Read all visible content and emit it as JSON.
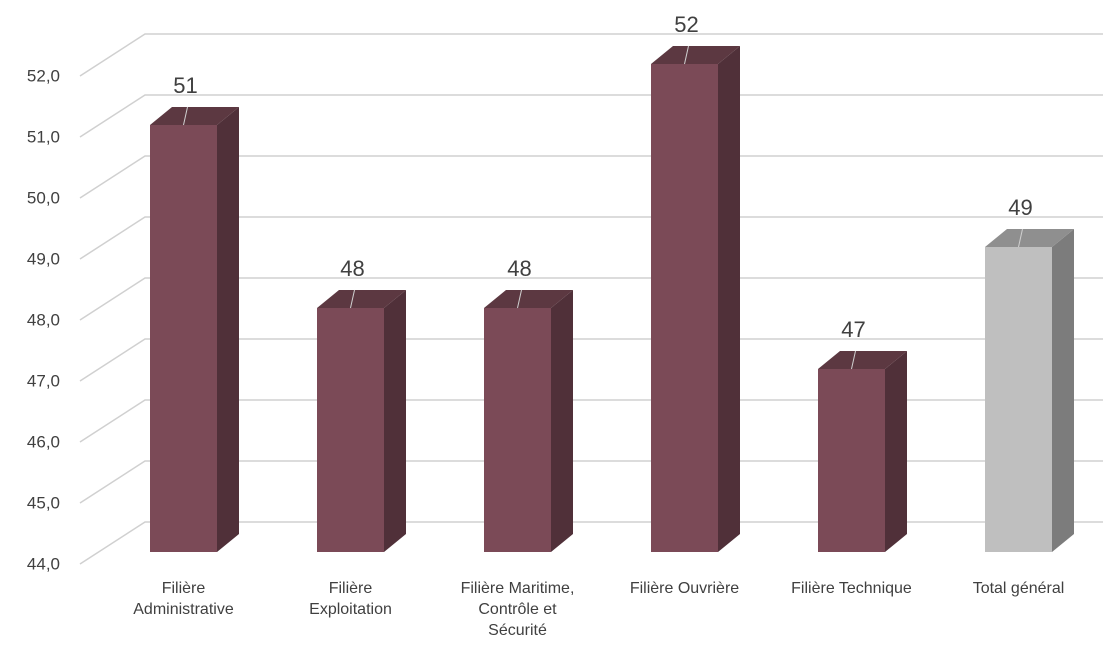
{
  "chart_data": {
    "type": "bar3d",
    "categories": [
      "Filière Administrative",
      "Filière Exploitation",
      "Filière Maritime, Contrôle et Sécurité",
      "Filière Ouvrière",
      "Filière Technique",
      "Total général"
    ],
    "values": [
      51,
      48,
      48,
      52,
      47,
      49
    ],
    "colors": [
      "#7b4a57",
      "#7b4a57",
      "#7b4a57",
      "#7b4a57",
      "#7b4a57",
      "#bfbfbf"
    ],
    "ylim": [
      44,
      52
    ],
    "yticks": [
      {
        "value": 44,
        "label": "44,0"
      },
      {
        "value": 45,
        "label": "45,0"
      },
      {
        "value": 46,
        "label": "46,0"
      },
      {
        "value": 47,
        "label": "47,0"
      },
      {
        "value": 48,
        "label": "48,0"
      },
      {
        "value": 49,
        "label": "49,0"
      },
      {
        "value": 50,
        "label": "50,0"
      },
      {
        "value": 51,
        "label": "51,0"
      },
      {
        "value": 52,
        "label": "52,0"
      }
    ],
    "grid": true
  }
}
